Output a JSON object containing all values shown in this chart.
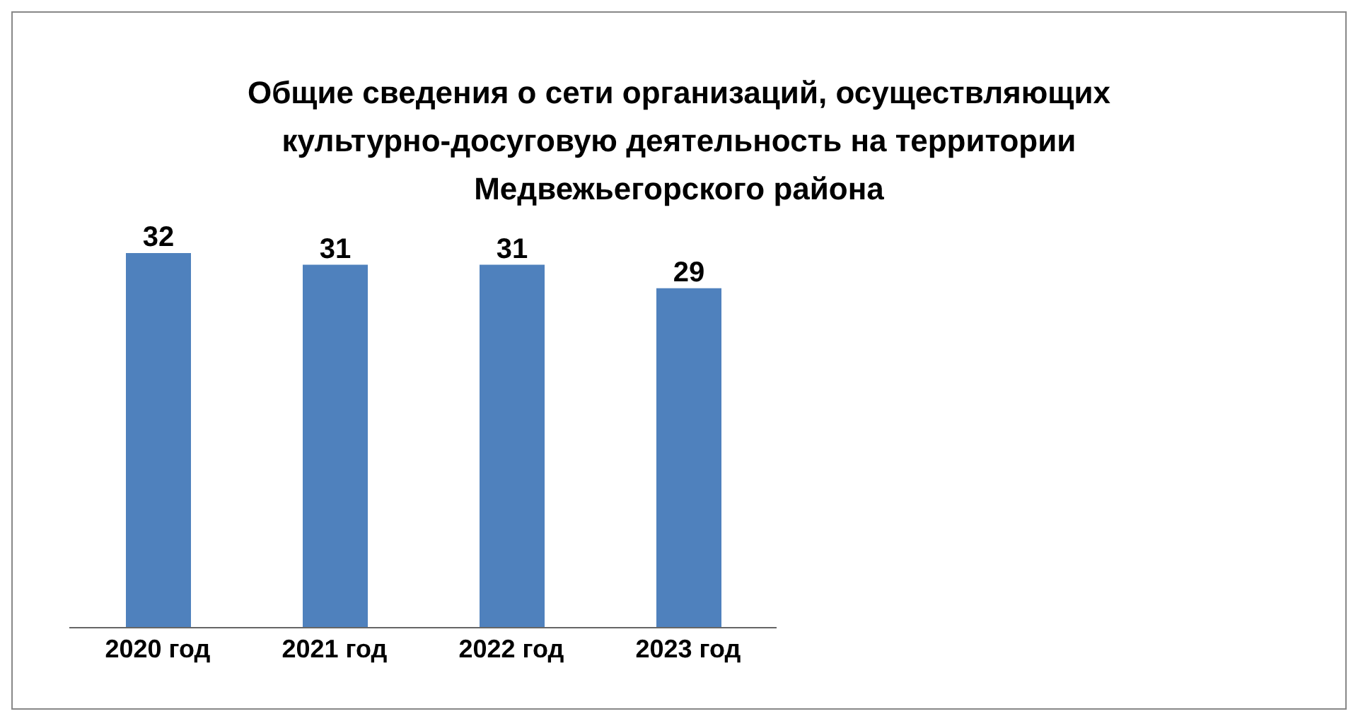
{
  "chart_data": {
    "type": "bar",
    "title": "Общие сведения о сети организаций, осуществляющих культурно-досуговую деятельность на территории Медвежьегорского района",
    "categories": [
      "2020 год",
      "2021 год",
      "2022 год",
      "2023 год"
    ],
    "values": [
      32,
      31,
      31,
      29
    ],
    "color": "#4f81bd",
    "data_labels": true,
    "grid": false,
    "legend": false
  }
}
